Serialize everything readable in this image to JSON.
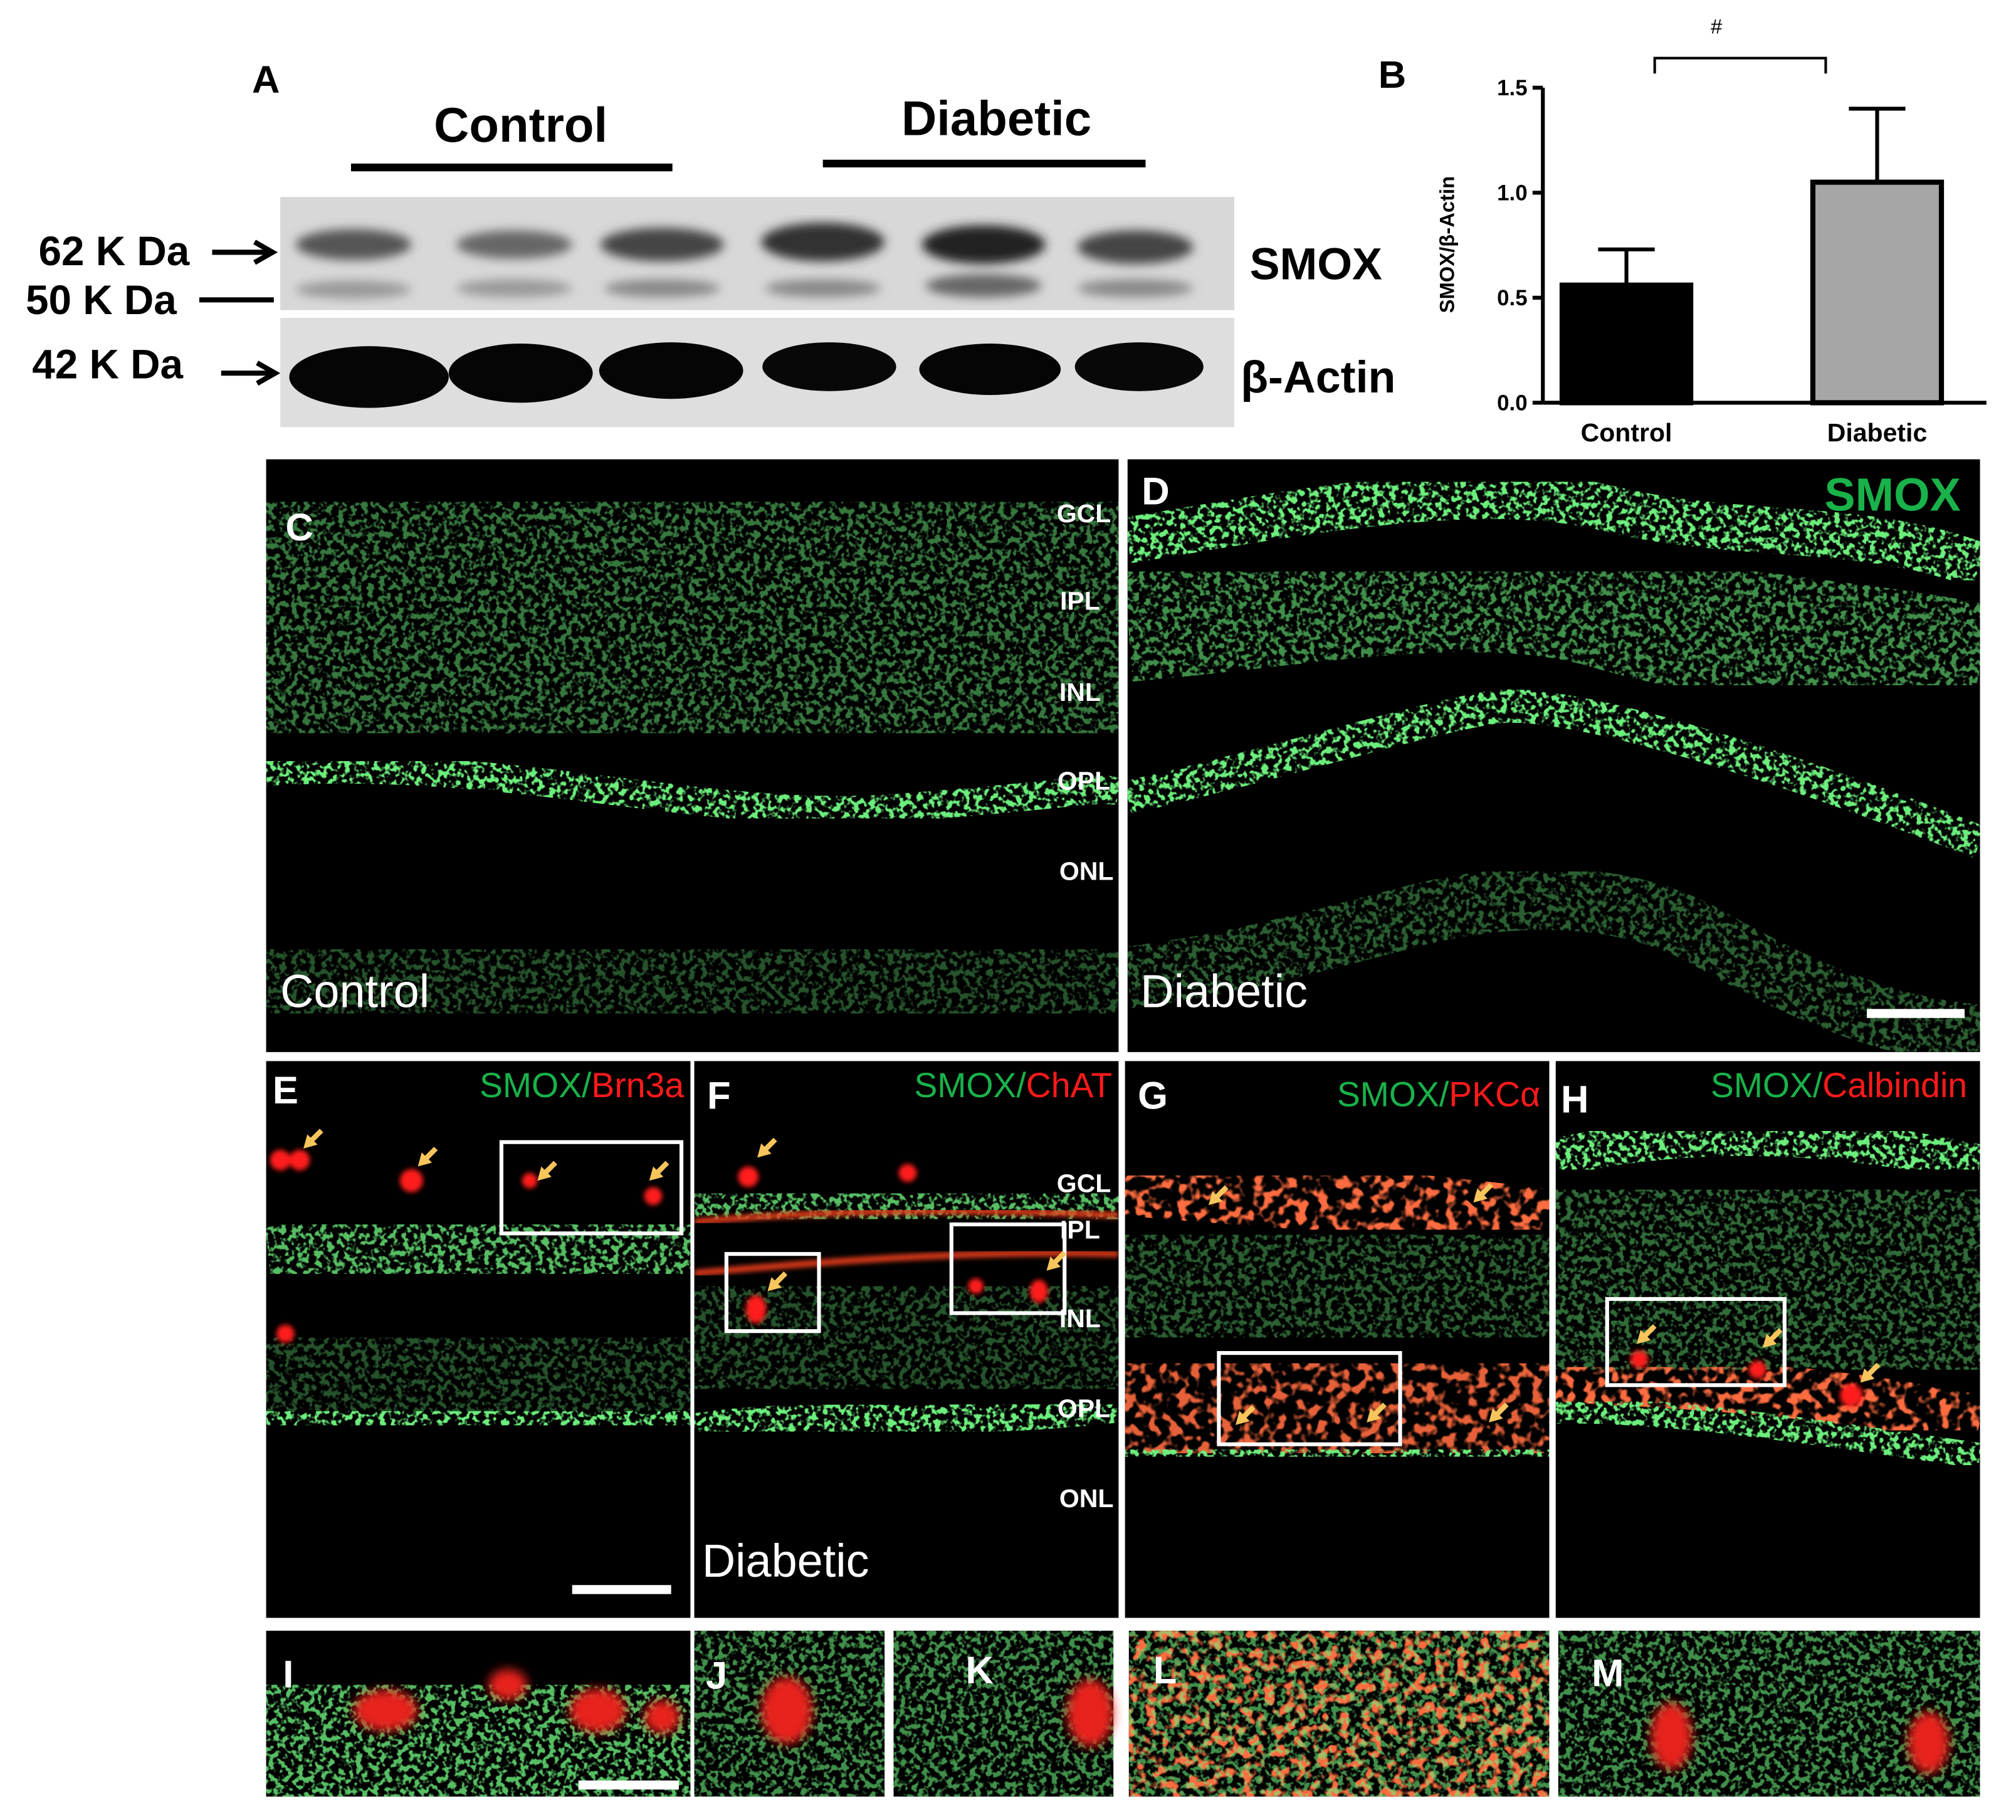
{
  "panel_a": {
    "letter": "A",
    "groups": [
      "Control",
      "Diabetic"
    ],
    "markers": [
      "62 K Da",
      "50 K Da",
      "42 K Da"
    ],
    "proteins": [
      "SMOX",
      "β-Actin"
    ]
  },
  "panel_b": {
    "letter": "B"
  },
  "panel_c": {
    "letter": "C",
    "layers": [
      "GCL",
      "IPL",
      "INL",
      "OPL",
      "ONL"
    ],
    "caption": "Control"
  },
  "panel_d": {
    "letter": "D",
    "stain": "SMOX",
    "caption": "Diabetic"
  },
  "panel_e": {
    "letter": "E",
    "stain": "SMOX/",
    "marker": "Brn3a"
  },
  "panel_f": {
    "letter": "F",
    "stain": "SMOX/",
    "marker": "ChAT",
    "layers": [
      "GCL",
      "IPL",
      "INL",
      "OPL",
      "ONL"
    ],
    "caption": "Diabetic"
  },
  "panel_g": {
    "letter": "G",
    "stain": "SMOX/",
    "marker": "PKCα"
  },
  "panel_h": {
    "letter": "H",
    "stain": "SMOX/",
    "marker": "Calbindin"
  },
  "panels_i_m": {
    "letters": [
      "I",
      "J",
      "K",
      "L",
      "M"
    ]
  },
  "chart_data": {
    "type": "bar",
    "y_label": "SMOX/β-Actin",
    "categories": [
      "Control",
      "Diabetic"
    ],
    "values": [
      0.56,
      1.05
    ],
    "errors": [
      0.17,
      0.35
    ],
    "colors": [
      "#000000",
      "#a6a6a6"
    ],
    "ylim": [
      0,
      1.5
    ],
    "yticks": [
      {
        "value": 0,
        "label": "0.0"
      },
      0.5,
      {
        "value": 1,
        "label": "1.0"
      },
      1.5
    ],
    "significance": "#"
  }
}
